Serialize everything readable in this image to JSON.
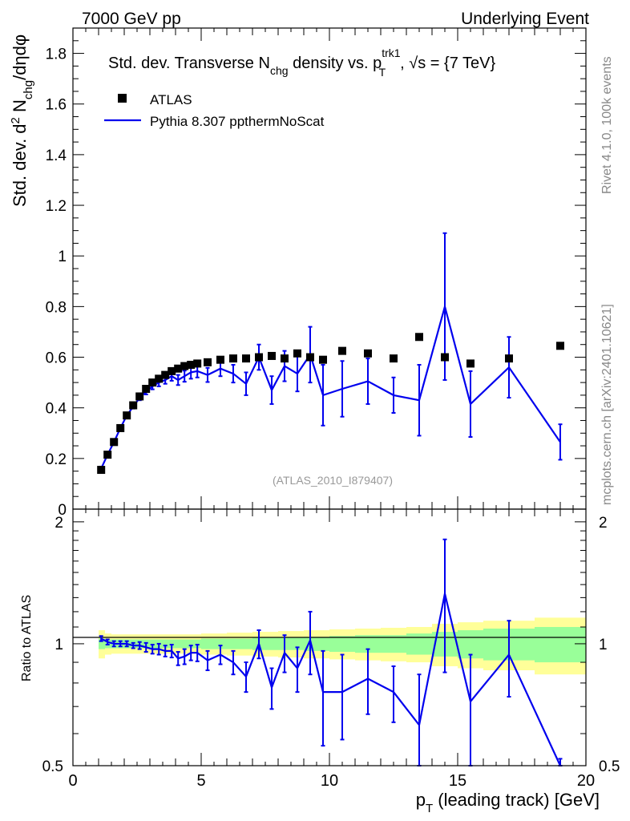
{
  "header": {
    "left": "7000 GeV pp",
    "right": "Underlying Event"
  },
  "side_labels": {
    "rivet": "Rivet 4.1.0,  100k events",
    "mcplots": "mcplots.cern.ch [arXiv:2401.10621]"
  },
  "colors": {
    "data": "#000000",
    "mc": "#0000ee",
    "band_inner": "#99ff99",
    "band_outer": "#ffff99"
  },
  "chart_data": {
    "type": "line",
    "title_parts": {
      "prefix": "Std. dev. Transverse N",
      "sub": "chg",
      "mid": " density vs. p",
      "sup": "trk1",
      "sub2": "T",
      "suffix": ", √s = {7 TeV}"
    },
    "ylabel_parts": {
      "a": "Std. dev. d",
      "sup": "2",
      "b": " N",
      "sub": "chg",
      "c": "/dηdφ"
    },
    "xlabel_parts": {
      "a": "p",
      "sub": "T",
      "b": " (leading track) [GeV]"
    },
    "ratio_ylabel": "Ratio to ATLAS",
    "watermark": "(ATLAS_2010_I879407)",
    "xlim": [
      0,
      20
    ],
    "ylim": [
      0,
      1.9
    ],
    "ratio_ylim": [
      0.5,
      2.15
    ],
    "x_ticks": [
      0,
      5,
      10,
      15,
      20
    ],
    "y_ticks": [
      0,
      0.2,
      0.4,
      0.6,
      0.8,
      1,
      1.2,
      1.4,
      1.6,
      1.8
    ],
    "ratio_ticks": [
      0.5,
      1,
      2
    ],
    "ratio_tick_labels": [
      "0.5",
      "1",
      "2"
    ],
    "legend": [
      {
        "name": "ATLAS",
        "kind": "marker"
      },
      {
        "name": "Pythia 8.307 ppthermNoScat",
        "kind": "line"
      }
    ],
    "series": [
      {
        "name": "ATLAS",
        "x": [
          1.1,
          1.35,
          1.6,
          1.85,
          2.1,
          2.35,
          2.6,
          2.85,
          3.1,
          3.35,
          3.6,
          3.85,
          4.1,
          4.35,
          4.6,
          4.85,
          5.25,
          5.75,
          6.25,
          6.75,
          7.25,
          7.75,
          8.25,
          8.75,
          9.25,
          9.75,
          10.5,
          11.5,
          12.5,
          13.5,
          14.5,
          15.5,
          17.0,
          19.0
        ],
        "y": [
          0.155,
          0.215,
          0.265,
          0.32,
          0.37,
          0.41,
          0.445,
          0.475,
          0.5,
          0.515,
          0.53,
          0.545,
          0.555,
          0.565,
          0.57,
          0.575,
          0.58,
          0.59,
          0.595,
          0.595,
          0.6,
          0.605,
          0.595,
          0.615,
          0.6,
          0.59,
          0.625,
          0.615,
          0.595,
          0.68,
          0.6,
          0.575,
          0.595,
          0.645
        ]
      },
      {
        "name": "Pythia 8.307 ppthermNoScat",
        "x": [
          1.1,
          1.35,
          1.6,
          1.85,
          2.1,
          2.35,
          2.6,
          2.85,
          3.1,
          3.35,
          3.6,
          3.85,
          4.1,
          4.35,
          4.6,
          4.85,
          5.25,
          5.75,
          6.25,
          6.75,
          7.25,
          7.75,
          8.25,
          8.75,
          9.25,
          9.75,
          10.5,
          11.5,
          12.5,
          13.5,
          14.5,
          15.5,
          17.0,
          19.0
        ],
        "y": [
          0.16,
          0.215,
          0.265,
          0.32,
          0.37,
          0.405,
          0.44,
          0.465,
          0.485,
          0.5,
          0.51,
          0.525,
          0.51,
          0.525,
          0.54,
          0.545,
          0.53,
          0.555,
          0.535,
          0.495,
          0.6,
          0.47,
          0.565,
          0.535,
          0.61,
          0.45,
          0.475,
          0.505,
          0.45,
          0.43,
          0.8,
          0.415,
          0.56,
          0.265
        ],
        "yerr": [
          0.008,
          0.008,
          0.008,
          0.008,
          0.008,
          0.008,
          0.01,
          0.012,
          0.012,
          0.015,
          0.015,
          0.018,
          0.02,
          0.022,
          0.025,
          0.025,
          0.028,
          0.03,
          0.035,
          0.045,
          0.05,
          0.055,
          0.06,
          0.07,
          0.11,
          0.12,
          0.11,
          0.09,
          0.07,
          0.14,
          0.29,
          0.13,
          0.12,
          0.07
        ],
        "ratio": [
          1.03,
          1.01,
          1.0,
          1.0,
          1.0,
          0.99,
          0.99,
          0.98,
          0.97,
          0.97,
          0.96,
          0.96,
          0.92,
          0.93,
          0.95,
          0.95,
          0.91,
          0.94,
          0.9,
          0.83,
          1.0,
          0.78,
          0.95,
          0.87,
          1.02,
          0.76,
          0.76,
          0.82,
          0.76,
          0.63,
          1.33,
          0.72,
          0.94,
          0.41
        ],
        "ratio_err": [
          0.015,
          0.015,
          0.015,
          0.015,
          0.015,
          0.015,
          0.02,
          0.025,
          0.025,
          0.03,
          0.03,
          0.035,
          0.035,
          0.04,
          0.04,
          0.045,
          0.05,
          0.05,
          0.06,
          0.07,
          0.08,
          0.09,
          0.1,
          0.11,
          0.18,
          0.2,
          0.18,
          0.15,
          0.12,
          0.21,
          0.48,
          0.22,
          0.2,
          0.11
        ]
      }
    ],
    "ratio_band": {
      "x_edges": [
        1.0,
        1.25,
        1.5,
        1.75,
        2.0,
        2.25,
        2.5,
        2.75,
        3.0,
        3.25,
        3.5,
        3.75,
        4.0,
        4.25,
        4.5,
        4.75,
        5.0,
        5.5,
        6.0,
        6.5,
        7.0,
        7.5,
        8.0,
        8.5,
        9.0,
        9.5,
        10.0,
        11.0,
        12.0,
        13.0,
        14.0,
        15.0,
        16.0,
        18.0,
        20.0
      ],
      "inner": [
        0.03,
        0.025,
        0.025,
        0.025,
        0.025,
        0.025,
        0.025,
        0.025,
        0.025,
        0.025,
        0.025,
        0.025,
        0.025,
        0.025,
        0.025,
        0.025,
        0.03,
        0.03,
        0.03,
        0.03,
        0.035,
        0.035,
        0.035,
        0.035,
        0.04,
        0.04,
        0.045,
        0.05,
        0.05,
        0.06,
        0.07,
        0.08,
        0.09,
        0.1
      ],
      "outer": [
        0.08,
        0.06,
        0.055,
        0.055,
        0.055,
        0.055,
        0.055,
        0.055,
        0.055,
        0.055,
        0.055,
        0.055,
        0.055,
        0.055,
        0.055,
        0.055,
        0.06,
        0.06,
        0.065,
        0.065,
        0.07,
        0.07,
        0.075,
        0.075,
        0.08,
        0.08,
        0.085,
        0.09,
        0.095,
        0.1,
        0.12,
        0.13,
        0.14,
        0.16
      ]
    }
  }
}
